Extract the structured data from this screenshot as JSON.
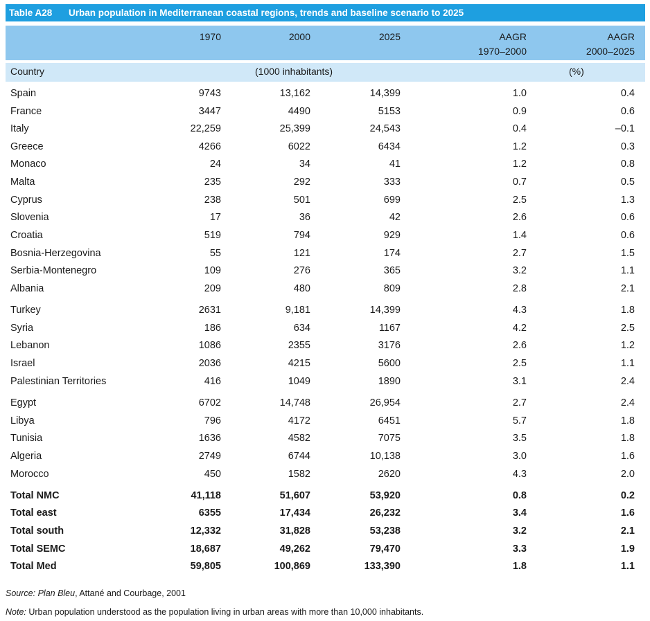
{
  "table": {
    "tag": "Table A28",
    "title": "Urban population in Mediterranean coastal regions, trends and baseline scenario to 2025",
    "headers": {
      "c1970": "1970",
      "c2000": "2000",
      "c2025": "2025",
      "aagr1_line1": "AAGR",
      "aagr1_line2": "1970–2000",
      "aagr2_line1": "AAGR",
      "aagr2_line2": "2000–2025"
    },
    "unit_row": {
      "country": "Country",
      "inhabitants": "(1000 inhabitants)",
      "percent": "(%)"
    },
    "rows": [
      {
        "country": "Spain",
        "c1970": "9743",
        "c2000": "13,162",
        "c2025": "14,399",
        "aagr1": "1.0",
        "aagr2": "0.4"
      },
      {
        "country": "France",
        "c1970": "3447",
        "c2000": "4490",
        "c2025": "5153",
        "aagr1": "0.9",
        "aagr2": "0.6"
      },
      {
        "country": "Italy",
        "c1970": "22,259",
        "c2000": "25,399",
        "c2025": "24,543",
        "aagr1": "0.4",
        "aagr2": "–0.1"
      },
      {
        "country": "Greece",
        "c1970": "4266",
        "c2000": "6022",
        "c2025": "6434",
        "aagr1": "1.2",
        "aagr2": "0.3"
      },
      {
        "country": "Monaco",
        "c1970": "24",
        "c2000": "34",
        "c2025": "41",
        "aagr1": "1.2",
        "aagr2": "0.8"
      },
      {
        "country": "Malta",
        "c1970": "235",
        "c2000": "292",
        "c2025": "333",
        "aagr1": "0.7",
        "aagr2": "0.5"
      },
      {
        "country": "Cyprus",
        "c1970": "238",
        "c2000": "501",
        "c2025": "699",
        "aagr1": "2.5",
        "aagr2": "1.3"
      },
      {
        "country": "Slovenia",
        "c1970": "17",
        "c2000": "36",
        "c2025": "42",
        "aagr1": "2.6",
        "aagr2": "0.6"
      },
      {
        "country": "Croatia",
        "c1970": "519",
        "c2000": "794",
        "c2025": "929",
        "aagr1": "1.4",
        "aagr2": "0.6"
      },
      {
        "country": "Bosnia-Herzegovina",
        "c1970": "55",
        "c2000": "121",
        "c2025": "174",
        "aagr1": "2.7",
        "aagr2": "1.5"
      },
      {
        "country": "Serbia-Montenegro",
        "c1970": "109",
        "c2000": "276",
        "c2025": "365",
        "aagr1": "3.2",
        "aagr2": "1.1"
      },
      {
        "country": "Albania",
        "c1970": "209",
        "c2000": "480",
        "c2025": "809",
        "aagr1": "2.8",
        "aagr2": "2.1"
      },
      {
        "country": "Turkey",
        "c1970": "2631",
        "c2000": "9,181",
        "c2025": "14,399",
        "aagr1": "4.3",
        "aagr2": "1.8"
      },
      {
        "country": "Syria",
        "c1970": "186",
        "c2000": "634",
        "c2025": "1167",
        "aagr1": "4.2",
        "aagr2": "2.5"
      },
      {
        "country": "Lebanon",
        "c1970": "1086",
        "c2000": "2355",
        "c2025": "3176",
        "aagr1": "2.6",
        "aagr2": "1.2"
      },
      {
        "country": "Israel",
        "c1970": "2036",
        "c2000": "4215",
        "c2025": "5600",
        "aagr1": "2.5",
        "aagr2": "1.1"
      },
      {
        "country": "Palestinian Territories",
        "c1970": "416",
        "c2000": "1049",
        "c2025": "1890",
        "aagr1": "3.1",
        "aagr2": "2.4"
      },
      {
        "country": "Egypt",
        "c1970": "6702",
        "c2000": "14,748",
        "c2025": "26,954",
        "aagr1": "2.7",
        "aagr2": "2.4"
      },
      {
        "country": "Libya",
        "c1970": "796",
        "c2000": "4172",
        "c2025": "6451",
        "aagr1": "5.7",
        "aagr2": "1.8"
      },
      {
        "country": "Tunisia",
        "c1970": "1636",
        "c2000": "4582",
        "c2025": "7075",
        "aagr1": "3.5",
        "aagr2": "1.8"
      },
      {
        "country": "Algeria",
        "c1970": "2749",
        "c2000": "6744",
        "c2025": "10,138",
        "aagr1": "3.0",
        "aagr2": "1.6"
      },
      {
        "country": "Morocco",
        "c1970": "450",
        "c2000": "1582",
        "c2025": "2620",
        "aagr1": "4.3",
        "aagr2": "2.0"
      },
      {
        "country": "Total NMC",
        "c1970": "41,118",
        "c2000": "51,607",
        "c2025": "53,920",
        "aagr1": "0.8",
        "aagr2": "0.2"
      },
      {
        "country": "Total east",
        "c1970": "6355",
        "c2000": "17,434",
        "c2025": "26,232",
        "aagr1": "3.4",
        "aagr2": "1.6"
      },
      {
        "country": "Total south",
        "c1970": "12,332",
        "c2000": "31,828",
        "c2025": "53,238",
        "aagr1": "3.2",
        "aagr2": "2.1"
      },
      {
        "country": "Total SEMC",
        "c1970": "18,687",
        "c2000": "49,262",
        "c2025": "79,470",
        "aagr1": "3.3",
        "aagr2": "1.9"
      },
      {
        "country": "Total Med",
        "c1970": "59,805",
        "c2000": "100,869",
        "c2025": "133,390",
        "aagr1": "1.8",
        "aagr2": "1.1"
      }
    ]
  },
  "footnotes": {
    "source_label": "Source:",
    "source_italic": "Plan Bleu",
    "source_text": ", Attané and Courbage, 2001",
    "note_label": "Note:",
    "note_text": " Urban population understood as the population living in urban areas with more than 10,000 inhabitants."
  },
  "colors": {
    "title_bar": "#1e9fe0",
    "header_bg": "#8ec7ee",
    "unit_row_bg": "#d0e8f8"
  }
}
